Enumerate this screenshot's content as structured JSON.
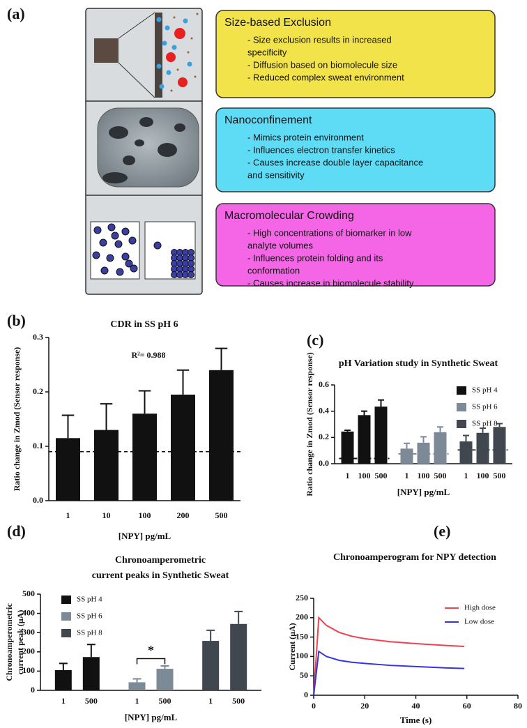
{
  "panel_a": {
    "label": "(a)",
    "boxes": [
      {
        "title": "Size-based Exclusion",
        "bullets": [
          "- Size exclusion results in increased",
          "specificity",
          "- Diffusion based on biomolecule size",
          "- Reduced complex sweat environment"
        ]
      },
      {
        "title": "Nanoconfinement",
        "bullets": [
          "- Mimics protein environment",
          "- Influences electron transfer kinetics",
          "- Causes increase double layer capacitance",
          "and sensitivity"
        ]
      },
      {
        "title": "Macromolecular Crowding",
        "bullets": [
          "- High concentrations of biomarker in low",
          "analyte volumes",
          "- Influences protein folding and its",
          "conformation",
          "- Causes increase in biomolecule stability"
        ]
      }
    ]
  },
  "chart_data": [
    {
      "label": "(b)",
      "type": "bar",
      "title": "CDR in SS pH 6",
      "ylabel": [
        "Ratio change in Zmod (Sensor response)"
      ],
      "xlabel": "[NPY] pg/mL",
      "categories": [
        "1",
        "10",
        "100",
        "200",
        "500"
      ],
      "values": [
        0.115,
        0.13,
        0.16,
        0.195,
        0.24
      ],
      "errors": [
        0.042,
        0.048,
        0.042,
        0.045,
        0.04
      ],
      "color": "#111111",
      "threshold": 0.09,
      "annotation": "R²= 0.988",
      "ylim": [
        0,
        0.3
      ],
      "yticks": [
        {
          "value": 0,
          "label": "0.0"
        },
        0.1,
        0.2,
        0.3
      ]
    },
    {
      "label": "(c)",
      "type": "bar",
      "title": "pH Variation study in Synthetic Sweat",
      "ylabel": [
        "Ratio change in Zmod (Sensor response)"
      ],
      "xlabel": "[NPY] pg/mL",
      "categories": [
        "1",
        "100",
        "500"
      ],
      "series": [
        {
          "name": "SS pH 4",
          "color": "#111111",
          "values": [
            0.245,
            0.37,
            0.435
          ],
          "errors": [
            0.01,
            0.03,
            0.05
          ],
          "threshold": 0.04
        },
        {
          "name": "SS pH 6",
          "color": "#7c8a97",
          "values": [
            0.115,
            0.16,
            0.24
          ],
          "errors": [
            0.04,
            0.045,
            0.04
          ],
          "threshold": 0.075
        },
        {
          "name": "SS pH 8",
          "color": "#40474e",
          "values": [
            0.17,
            0.235,
            0.28
          ],
          "errors": [
            0.045,
            0.035,
            0.025
          ],
          "threshold": 0.105
        }
      ],
      "legend": "upper right",
      "ylim": [
        0,
        0.6
      ],
      "yticks": [
        {
          "value": 0,
          "label": "0.0"
        },
        0.2,
        0.4,
        0.6
      ]
    },
    {
      "label": "(d)",
      "type": "bar",
      "title": [
        "Chronoamperometric",
        "current peaks in Synthetic Sweat"
      ],
      "ylabel": [
        "Chronoamperometric",
        "current peak (µA)"
      ],
      "xlabel": "[NPY] pg/mL",
      "categories": [
        "1",
        "500"
      ],
      "series": [
        {
          "name": "SS pH 4",
          "color": "#111111",
          "values": [
            105,
            173
          ],
          "errors": [
            35,
            65
          ]
        },
        {
          "name": "SS pH 6",
          "color": "#7c8a97",
          "values": [
            42,
            112
          ],
          "errors": [
            18,
            15
          ]
        },
        {
          "name": "SS pH 8",
          "color": "#40474e",
          "values": [
            257,
            345
          ],
          "errors": [
            55,
            65
          ]
        }
      ],
      "annotation": "*",
      "legend": "upper left",
      "ylim": [
        0,
        500
      ],
      "yticks": [
        0,
        100,
        200,
        300,
        400,
        500
      ]
    },
    {
      "label": "(e)",
      "type": "line",
      "title": "Chronoamperogram for NPY detection",
      "ylabel": [
        "Current (µA)"
      ],
      "xlabel": "Time (s)",
      "x": [
        0,
        2,
        5,
        10,
        15,
        20,
        30,
        40,
        50,
        59
      ],
      "series": [
        {
          "name": "High dose",
          "color": "#f0414f",
          "values": [
            0,
            200,
            180,
            162,
            152,
            146,
            138,
            133,
            129,
            126
          ]
        },
        {
          "name": "Low dose",
          "color": "#3434e6",
          "values": [
            0,
            113,
            100,
            90,
            85,
            82,
            77,
            74,
            71,
            69
          ]
        }
      ],
      "legend": "upper right",
      "xlim": [
        0,
        80
      ],
      "xticks": [
        0,
        20,
        40,
        60,
        80
      ],
      "ylim": [
        0,
        250
      ],
      "yticks": [
        0,
        50,
        100,
        150,
        200,
        250
      ]
    }
  ]
}
